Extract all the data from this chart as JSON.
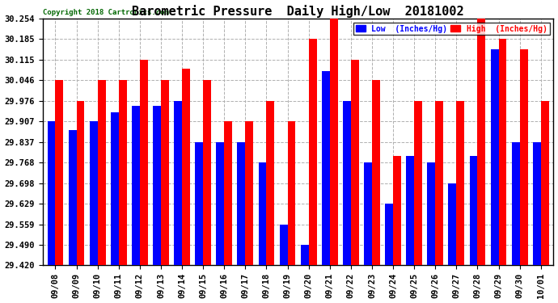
{
  "title": "Barometric Pressure  Daily High/Low  20181002",
  "copyright": "Copyright 2018 Cartronics.com",
  "legend_low": "Low  (Inches/Hg)",
  "legend_high": "High  (Inches/Hg)",
  "dates": [
    "09/08",
    "09/09",
    "09/10",
    "09/11",
    "09/12",
    "09/13",
    "09/14",
    "09/15",
    "09/16",
    "09/17",
    "09/18",
    "09/19",
    "09/20",
    "09/21",
    "09/22",
    "09/23",
    "09/24",
    "09/25",
    "09/26",
    "09/27",
    "09/28",
    "09/29",
    "09/30",
    "10/01"
  ],
  "low": [
    29.907,
    29.877,
    29.907,
    29.937,
    29.96,
    29.96,
    29.976,
    29.837,
    29.837,
    29.837,
    29.768,
    29.559,
    29.49,
    30.076,
    29.976,
    29.768,
    29.629,
    29.79,
    29.768,
    29.698,
    29.79,
    30.15,
    29.837,
    29.837
  ],
  "high": [
    30.046,
    29.976,
    30.046,
    30.046,
    30.115,
    30.046,
    30.085,
    30.046,
    29.907,
    29.907,
    29.976,
    29.907,
    30.185,
    30.254,
    30.115,
    30.046,
    29.79,
    29.976,
    29.976,
    29.976,
    30.254,
    30.185,
    30.15,
    29.976
  ],
  "ylim_min": 29.42,
  "ylim_max": 30.254,
  "yticks": [
    29.42,
    29.49,
    29.559,
    29.629,
    29.698,
    29.768,
    29.837,
    29.907,
    29.976,
    30.046,
    30.115,
    30.185,
    30.254
  ],
  "low_color": "#0000ff",
  "high_color": "#ff0000",
  "background_color": "#ffffff",
  "grid_color": "#b0b0b0",
  "title_fontsize": 11,
  "tick_fontsize": 7.5,
  "bar_width": 0.38
}
